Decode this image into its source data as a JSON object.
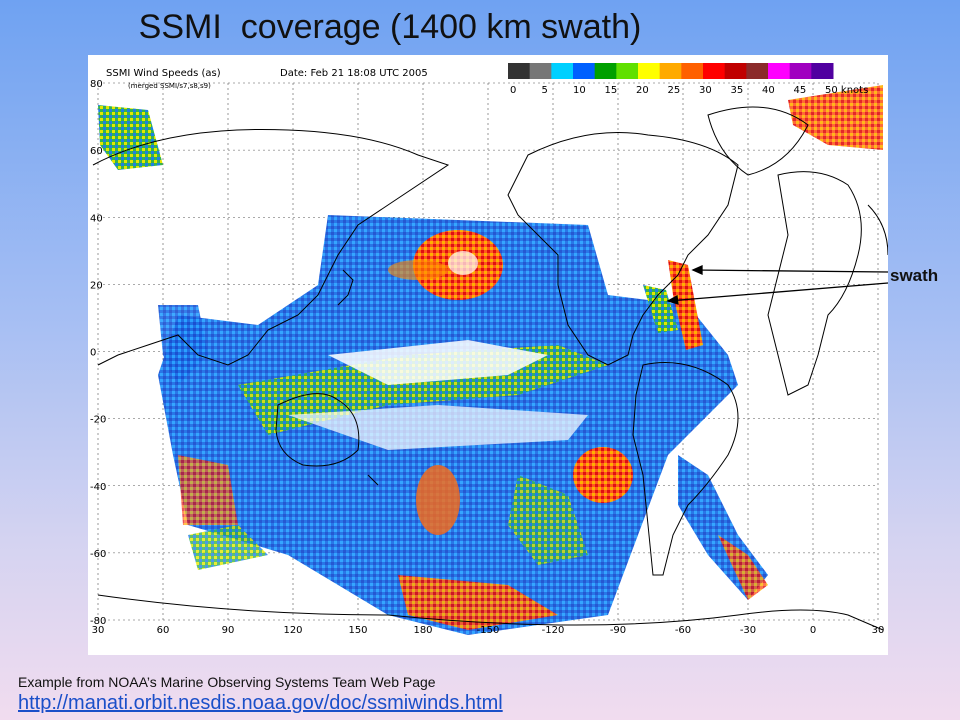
{
  "slide": {
    "title": "SSMI  coverage (1400 km swath)",
    "swath_label": "swath",
    "credit": "Example from NOAA’s Marine Observing Systems Team Web Page",
    "link": "http://manati.orbit.nesdis.noaa.gov/doc/ssmiwinds.html"
  },
  "map": {
    "title": "SSMI Wind Speeds (as)",
    "subtitle": "(merged SSMI/s7,s8,s9)",
    "date": "Date: Feb 21 18:08 UTC 2005",
    "colorbar": {
      "labels": [
        "0",
        "5",
        "10",
        "15",
        "20",
        "25",
        "30",
        "35",
        "40",
        "45",
        "50 knots"
      ],
      "colors": [
        "#333333",
        "#777777",
        "#00d0ff",
        "#0060ff",
        "#00a000",
        "#60e000",
        "#ffff00",
        "#ffaa00",
        "#ff6000",
        "#ff0000",
        "#c00000",
        "#8b2a2a",
        "#ff00ff",
        "#a000c0",
        "#5000a0"
      ]
    },
    "lat_labels": [
      "80",
      "60",
      "40",
      "20",
      "0",
      "-20",
      "-40",
      "-60",
      "-80"
    ],
    "lon_labels": [
      "30",
      "60",
      "90",
      "120",
      "150",
      "180",
      "-150",
      "-120",
      "-90",
      "-60",
      "-30",
      "0",
      "30"
    ]
  }
}
